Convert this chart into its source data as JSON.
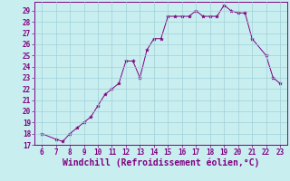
{
  "x": [
    6,
    7,
    7.5,
    8,
    8.5,
    9,
    9.5,
    10,
    10.5,
    11,
    11.5,
    12,
    12.5,
    13,
    13.5,
    14,
    14.5,
    15,
    15.5,
    16,
    16.5,
    17,
    17.5,
    18,
    18.5,
    19,
    19.5,
    20,
    20.5,
    21,
    22,
    22.5,
    23
  ],
  "y": [
    18,
    17.5,
    17.3,
    18,
    18.5,
    19,
    19.5,
    20.5,
    21.5,
    22,
    22.5,
    24.5,
    24.5,
    23,
    25.5,
    26.5,
    26.5,
    28.5,
    28.5,
    28.5,
    28.5,
    29,
    28.5,
    28.5,
    28.5,
    29.5,
    29,
    28.8,
    28.8,
    26.5,
    25,
    23,
    22.5
  ],
  "line_color": "#800080",
  "marker": "*",
  "marker_size": 3,
  "xlabel": "Windchill (Refroidissement éolien,°C)",
  "xlabel_color": "#800080",
  "xlim": [
    5.5,
    23.5
  ],
  "ylim": [
    17,
    29.8
  ],
  "xticks": [
    6,
    7,
    8,
    9,
    10,
    11,
    12,
    13,
    14,
    15,
    16,
    17,
    18,
    19,
    20,
    21,
    22,
    23
  ],
  "yticks": [
    17,
    18,
    19,
    20,
    21,
    22,
    23,
    24,
    25,
    26,
    27,
    28,
    29
  ],
  "bg_color": "#c8eef0",
  "grid_color": "#a0d0d8",
  "tick_color": "#800080",
  "tick_fontsize": 5.5,
  "xlabel_fontsize": 7,
  "line_width": 0.7
}
